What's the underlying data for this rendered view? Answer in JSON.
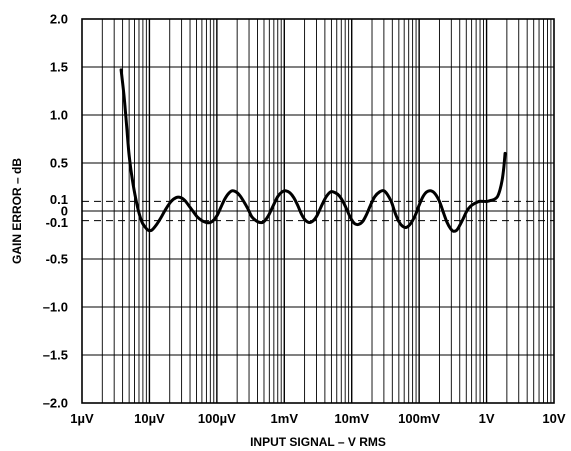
{
  "chart_data": {
    "type": "line",
    "title": "",
    "xlabel": "INPUT SIGNAL – V RMS",
    "ylabel": "GAIN ERROR – dB",
    "x_scale": "log",
    "xlim": [
      1e-06,
      10
    ],
    "ylim": [
      -2.0,
      2.0
    ],
    "grid": true,
    "x_ticks": [
      {
        "value": 1e-06,
        "label": "1µV"
      },
      {
        "value": 1e-05,
        "label": "10µV"
      },
      {
        "value": 0.0001,
        "label": "100µV"
      },
      {
        "value": 0.001,
        "label": "1mV"
      },
      {
        "value": 0.01,
        "label": "10mV"
      },
      {
        "value": 0.1,
        "label": "100mV"
      },
      {
        "value": 1,
        "label": "1V"
      },
      {
        "value": 10,
        "label": "10V"
      }
    ],
    "y_ticks": [
      {
        "value": 2.0,
        "label": "2.0"
      },
      {
        "value": 1.5,
        "label": "1.5"
      },
      {
        "value": 1.0,
        "label": "1.0"
      },
      {
        "value": 0.5,
        "label": "0.5"
      },
      {
        "value": 0.1,
        "label": "0.1"
      },
      {
        "value": 0,
        "label": "0"
      },
      {
        "value": -0.1,
        "label": "-0.1"
      },
      {
        "value": -0.5,
        "label": "-0.5"
      },
      {
        "value": -1.0,
        "label": "–1.0"
      },
      {
        "value": -1.5,
        "label": "–1.5"
      },
      {
        "value": -2.0,
        "label": "–2.0"
      }
    ],
    "reference_lines": [
      0.1,
      0,
      -0.1
    ],
    "series": [
      {
        "x": [
          3.8e-06,
          4.2e-06,
          4.6e-06,
          5e-06,
          5.6e-06,
          6.3e-06,
          7e-06,
          7.8e-06,
          8.7e-06,
          9.6e-06,
          1.08e-05,
          1.25e-05,
          1.48e-05,
          1.75e-05,
          2.1e-05,
          2.5e-05,
          2.9e-05,
          3.35e-05,
          3.8e-05,
          4.4e-05,
          5.1e-05,
          6e-05,
          7e-05,
          8e-05,
          9.1e-05,
          0.000102,
          0.000115,
          0.00013,
          0.000148,
          0.000168,
          0.000192,
          0.00022,
          0.00025,
          0.00029,
          0.00033,
          0.00038,
          0.00044,
          0.0005,
          0.00058,
          0.00068,
          0.0008,
          0.00093,
          0.00106,
          0.00121,
          0.00138,
          0.00158,
          0.00182,
          0.00208,
          0.00237,
          0.0027,
          0.0031,
          0.0036,
          0.0042,
          0.0049,
          0.0057,
          0.0065,
          0.0074,
          0.0084,
          0.0096,
          0.011,
          0.0126,
          0.0145,
          0.0165,
          0.019,
          0.022,
          0.026,
          0.03,
          0.034,
          0.039,
          0.044,
          0.05,
          0.057,
          0.065,
          0.075,
          0.087,
          0.1,
          0.114,
          0.13,
          0.15,
          0.172,
          0.2,
          0.23,
          0.26,
          0.29,
          0.32,
          0.36,
          0.4,
          0.45,
          0.51,
          0.58,
          0.67,
          0.78,
          0.9,
          1.02,
          1.15,
          1.3,
          1.45,
          1.58,
          1.7,
          1.8,
          1.88
        ],
        "y": [
          1.47,
          1.2,
          0.88,
          0.58,
          0.32,
          0.12,
          -0.02,
          -0.12,
          -0.17,
          -0.2,
          -0.2,
          -0.15,
          -0.07,
          0.02,
          0.1,
          0.14,
          0.14,
          0.11,
          0.06,
          0.0,
          -0.06,
          -0.1,
          -0.12,
          -0.12,
          -0.09,
          -0.04,
          0.04,
          0.12,
          0.18,
          0.21,
          0.2,
          0.16,
          0.1,
          0.02,
          -0.06,
          -0.1,
          -0.12,
          -0.11,
          -0.05,
          0.05,
          0.15,
          0.2,
          0.21,
          0.19,
          0.14,
          0.06,
          -0.04,
          -0.1,
          -0.12,
          -0.1,
          -0.04,
          0.06,
          0.15,
          0.2,
          0.19,
          0.16,
          0.1,
          0.02,
          -0.07,
          -0.13,
          -0.14,
          -0.11,
          -0.04,
          0.06,
          0.15,
          0.2,
          0.21,
          0.17,
          0.09,
          -0.02,
          -0.11,
          -0.16,
          -0.17,
          -0.13,
          -0.05,
          0.06,
          0.15,
          0.2,
          0.21,
          0.18,
          0.1,
          -0.02,
          -0.12,
          -0.18,
          -0.21,
          -0.2,
          -0.15,
          -0.08,
          0.0,
          0.05,
          0.08,
          0.1,
          0.1,
          0.1,
          0.11,
          0.12,
          0.15,
          0.22,
          0.32,
          0.45,
          0.6
        ]
      }
    ]
  }
}
